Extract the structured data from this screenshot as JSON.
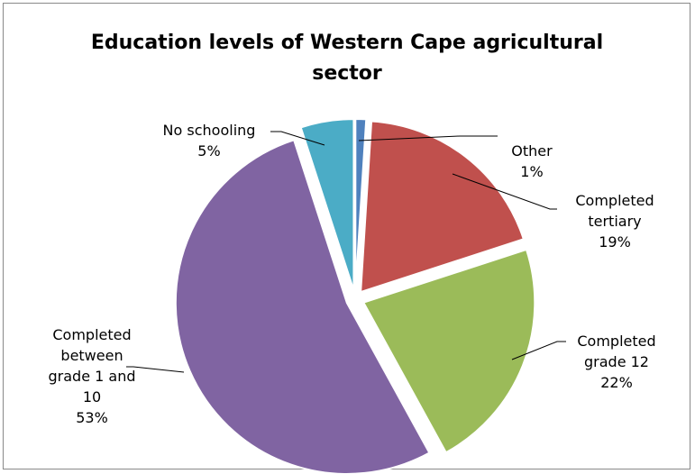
{
  "chart_data": {
    "type": "pie",
    "title_lines": [
      "Education levels of Western Cape agricultural",
      "sector"
    ],
    "slices": [
      {
        "label_lines": [
          "Other"
        ],
        "value": 1,
        "pct_label": "1%",
        "color": "#4F81BD"
      },
      {
        "label_lines": [
          "Completed",
          "tertiary"
        ],
        "value": 19,
        "pct_label": "19%",
        "color": "#C0504D"
      },
      {
        "label_lines": [
          "Completed",
          "grade 12"
        ],
        "value": 22,
        "pct_label": "22%",
        "color": "#9BBB59"
      },
      {
        "label_lines": [
          "Completed",
          "between",
          "grade 1 and",
          "10"
        ],
        "value": 53,
        "pct_label": "53%",
        "color": "#8064A2"
      },
      {
        "label_lines": [
          "No schooling"
        ],
        "value": 5,
        "pct_label": "5%",
        "color": "#4BACC6"
      }
    ],
    "legend": "none",
    "exploded": true
  }
}
